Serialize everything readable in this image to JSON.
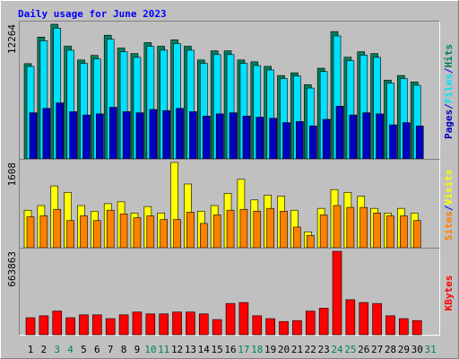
{
  "chart_data": [
    {
      "type": "bar",
      "title": "Daily usage for June 2023",
      "legend_separator": "/",
      "ylim": [
        0,
        12264
      ],
      "yticks": [
        12264
      ],
      "series": [
        {
          "name": "Hits",
          "color": "#00805c",
          "values": [
            8676,
            11096,
            12264,
            10262,
            9010,
            9427,
            11263,
            10095,
            9594,
            10595,
            10262,
            10846,
            10262,
            9010,
            9844,
            9844,
            9010,
            8843,
            8426,
            7592,
            7842,
            6758,
            8259,
            11597,
            9260,
            9761,
            9594,
            7175,
            7592,
            7008,
            null
          ]
        },
        {
          "name": "Files",
          "color": "#00e0ff",
          "values": [
            8420,
            10760,
            11900,
            9900,
            8700,
            9100,
            10900,
            9750,
            9250,
            10250,
            9900,
            10500,
            9900,
            8700,
            9500,
            9500,
            8700,
            8500,
            8100,
            7300,
            7550,
            6450,
            7950,
            11200,
            8950,
            9450,
            9250,
            6900,
            7300,
            6700,
            null
          ]
        },
        {
          "name": "Pages",
          "color": "#0000c0",
          "values": [
            4200,
            4600,
            5100,
            4300,
            4000,
            4100,
            4700,
            4300,
            4200,
            4500,
            4400,
            4600,
            4300,
            3900,
            4100,
            4200,
            3900,
            3800,
            3700,
            3300,
            3400,
            3000,
            3600,
            4800,
            4000,
            4200,
            4100,
            3100,
            3300,
            3000,
            null
          ]
        }
      ]
    },
    {
      "type": "bar",
      "legend_separator": "/",
      "ylim": [
        0,
        1608
      ],
      "yticks": [
        1608
      ],
      "series": [
        {
          "name": "Visits",
          "color": "#ffff00",
          "values": [
            707,
            795,
            1166,
            1043,
            795,
            689,
            831,
            866,
            654,
            777,
            654,
            1608,
            1202,
            689,
            795,
            1025,
            1290,
            901,
            990,
            972,
            707,
            300,
            742,
            1096,
            1043,
            972,
            742,
            654,
            742,
            654,
            null
          ]
        },
        {
          "name": "Sites",
          "color": "#ff8000",
          "values": [
            583,
            601,
            724,
            512,
            601,
            512,
            707,
            636,
            565,
            601,
            530,
            530,
            671,
            459,
            618,
            707,
            724,
            689,
            742,
            689,
            389,
            230,
            618,
            795,
            760,
            760,
            654,
            601,
            601,
            512,
            null
          ]
        }
      ]
    },
    {
      "type": "bar",
      "ylim": [
        0,
        663863
      ],
      "yticks": [
        663863
      ],
      "categories": [
        "1",
        "2",
        "3",
        "4",
        "5",
        "6",
        "7",
        "8",
        "9",
        "10",
        "11",
        "12",
        "13",
        "14",
        "15",
        "16",
        "17",
        "18",
        "19",
        "20",
        "21",
        "22",
        "23",
        "24",
        "25",
        "26",
        "27",
        "28",
        "29",
        "30",
        "31"
      ],
      "category_colors": [
        "#000000",
        "#000000",
        "#00805c",
        "#00805c",
        "#000000",
        "#000000",
        "#000000",
        "#000000",
        "#000000",
        "#00805c",
        "#00805c",
        "#000000",
        "#000000",
        "#000000",
        "#000000",
        "#000000",
        "#00805c",
        "#00805c",
        "#000000",
        "#000000",
        "#000000",
        "#000000",
        "#000000",
        "#00805c",
        "#00805c",
        "#000000",
        "#000000",
        "#000000",
        "#000000",
        "#000000",
        "#00805c"
      ],
      "series": [
        {
          "name": "KBytes",
          "color": "#ff0000",
          "values": [
            135792,
            150880,
            188600,
            135792,
            158424,
            158424,
            128248,
            158424,
            181056,
            165968,
            165968,
            181056,
            181056,
            165968,
            120704,
            248952,
            256496,
            150880,
            128248,
            105616,
            113160,
            188600,
            211232,
            663863,
            279128,
            256496,
            248952,
            150880,
            128248,
            113160,
            null
          ]
        }
      ]
    }
  ]
}
